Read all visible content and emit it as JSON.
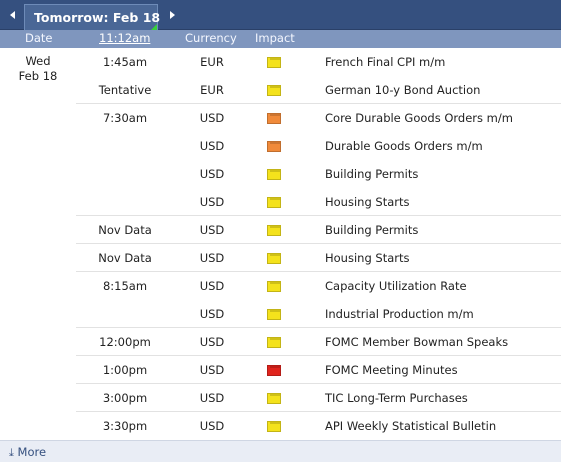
{
  "header": {
    "date_tab": "Tomorrow: Feb 18",
    "prev_icon": "triangle-left-icon",
    "next_icon": "triangle-right-icon"
  },
  "columns": {
    "date": "Date",
    "time": "11:12am",
    "currency": "Currency",
    "impact": "Impact"
  },
  "day": {
    "weekday": "Wed",
    "date": "Feb 18"
  },
  "events": [
    {
      "time": "1:45am",
      "currency": "EUR",
      "impact": "low",
      "impact_color": "#f4e21c",
      "event": "French Final CPI m/m"
    },
    {
      "time": "Tentative",
      "currency": "EUR",
      "impact": "low",
      "impact_color": "#f4e21c",
      "event": "German 10-y Bond Auction"
    },
    {
      "time": "7:30am",
      "currency": "USD",
      "impact": "medium",
      "impact_color": "#f08a3a",
      "event": "Core Durable Goods Orders m/m"
    },
    {
      "time": "",
      "currency": "USD",
      "impact": "medium",
      "impact_color": "#f08a3a",
      "event": "Durable Goods Orders m/m"
    },
    {
      "time": "",
      "currency": "USD",
      "impact": "low",
      "impact_color": "#f4e21c",
      "event": "Building Permits"
    },
    {
      "time": "",
      "currency": "USD",
      "impact": "low",
      "impact_color": "#f4e21c",
      "event": "Housing Starts"
    },
    {
      "time": "Nov Data",
      "currency": "USD",
      "impact": "low",
      "impact_color": "#f4e21c",
      "event": "Building Permits"
    },
    {
      "time": "Nov Data",
      "currency": "USD",
      "impact": "low",
      "impact_color": "#f4e21c",
      "event": "Housing Starts"
    },
    {
      "time": "8:15am",
      "currency": "USD",
      "impact": "low",
      "impact_color": "#f4e21c",
      "event": "Capacity Utilization Rate"
    },
    {
      "time": "",
      "currency": "USD",
      "impact": "low",
      "impact_color": "#f4e21c",
      "event": "Industrial Production m/m"
    },
    {
      "time": "12:00pm",
      "currency": "USD",
      "impact": "low",
      "impact_color": "#f4e21c",
      "event": "FOMC Member Bowman Speaks"
    },
    {
      "time": "1:00pm",
      "currency": "USD",
      "impact": "high",
      "impact_color": "#e0241d",
      "event": "FOMC Meeting Minutes"
    },
    {
      "time": "3:00pm",
      "currency": "USD",
      "impact": "low",
      "impact_color": "#f4e21c",
      "event": "TIC Long-Term Purchases"
    },
    {
      "time": "3:30pm",
      "currency": "USD",
      "impact": "low",
      "impact_color": "#f4e21c",
      "event": "API Weekly Statistical Bulletin"
    }
  ],
  "footer": {
    "more_label": "More",
    "more_icon": "download-arrow-icon"
  }
}
